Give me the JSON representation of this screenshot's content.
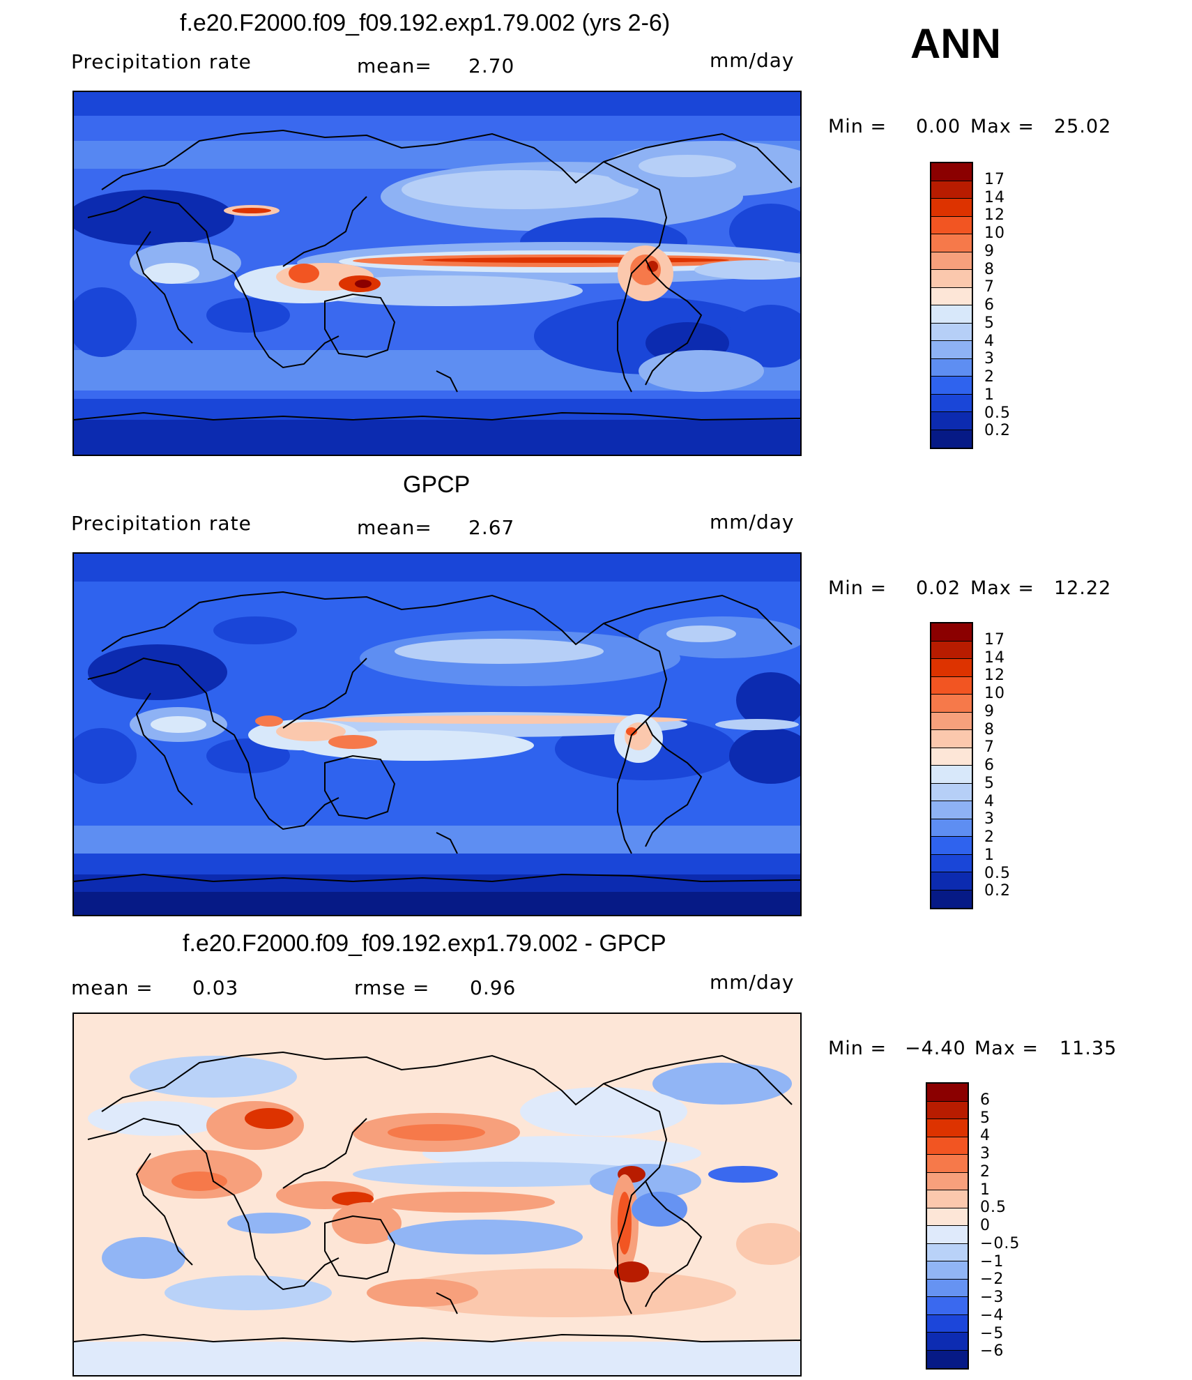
{
  "season": "ANN",
  "panels": [
    {
      "id": "model",
      "title": "f.e20.F2000.f09_f09.192.exp1.79.002 (yrs 2-6)",
      "left_text": "Precipitation  rate",
      "mid_label": "mean=",
      "mid_value": "2.70",
      "units": "mm/day",
      "min_label": "Min  =",
      "min_value": "0.00",
      "max_label": "Max  =",
      "max_value": "25.02",
      "colorbar_labels": [
        "17",
        "14",
        "12",
        "10",
        "9",
        "8",
        "7",
        "6",
        "5",
        "4",
        "3",
        "2",
        "1",
        "0.5",
        "0.2"
      ]
    },
    {
      "id": "obs",
      "title": "GPCP",
      "left_text": "Precipitation  rate",
      "mid_label": "mean=",
      "mid_value": "2.67",
      "units": "mm/day",
      "min_label": "Min  =",
      "min_value": "0.02",
      "max_label": "Max  =",
      "max_value": "12.22",
      "colorbar_labels": [
        "17",
        "14",
        "12",
        "10",
        "9",
        "8",
        "7",
        "6",
        "5",
        "4",
        "3",
        "2",
        "1",
        "0.5",
        "0.2"
      ]
    },
    {
      "id": "diff",
      "title": "f.e20.F2000.f09_f09.192.exp1.79.002 - GPCP",
      "left_label": "mean  =",
      "left_value": "0.03",
      "mid_label": "rmse  =",
      "mid_value": "0.96",
      "units": "mm/day",
      "min_label": "Min  =",
      "min_value": "−4.40",
      "max_label": "Max  =",
      "max_value": "11.35",
      "colorbar_labels": [
        "6",
        "5",
        "4",
        "3",
        "2",
        "1",
        "0.5",
        "0",
        "−0.5",
        "−1",
        "−2",
        "−3",
        "−4",
        "−5",
        "−6"
      ]
    }
  ],
  "colors": {
    "precip_scale": [
      "#8b0000",
      "#b81c00",
      "#dd3300",
      "#f25522",
      "#f6794a",
      "#f7a07c",
      "#fbc8ad",
      "#fde6d7",
      "#d8e8fa",
      "#b6cff7",
      "#8eb2f4",
      "#5e8ef2",
      "#2f63ee",
      "#1a46d8",
      "#0c2bb0",
      "#061a86"
    ],
    "diff_scale": [
      "#8b0000",
      "#b81c00",
      "#dd3300",
      "#f25522",
      "#f6794a",
      "#f7a07c",
      "#fbc8ad",
      "#fde6d7",
      "#dfeafb",
      "#b9d2f8",
      "#91b5f5",
      "#6693f2",
      "#3a69ef",
      "#1c46da",
      "#0d2cb2",
      "#061a86"
    ],
    "ocean_model": "#3a69ef",
    "ocean_obs": "#2f63ee",
    "diff_background": "#dfeafb",
    "coastline": "#000000"
  }
}
